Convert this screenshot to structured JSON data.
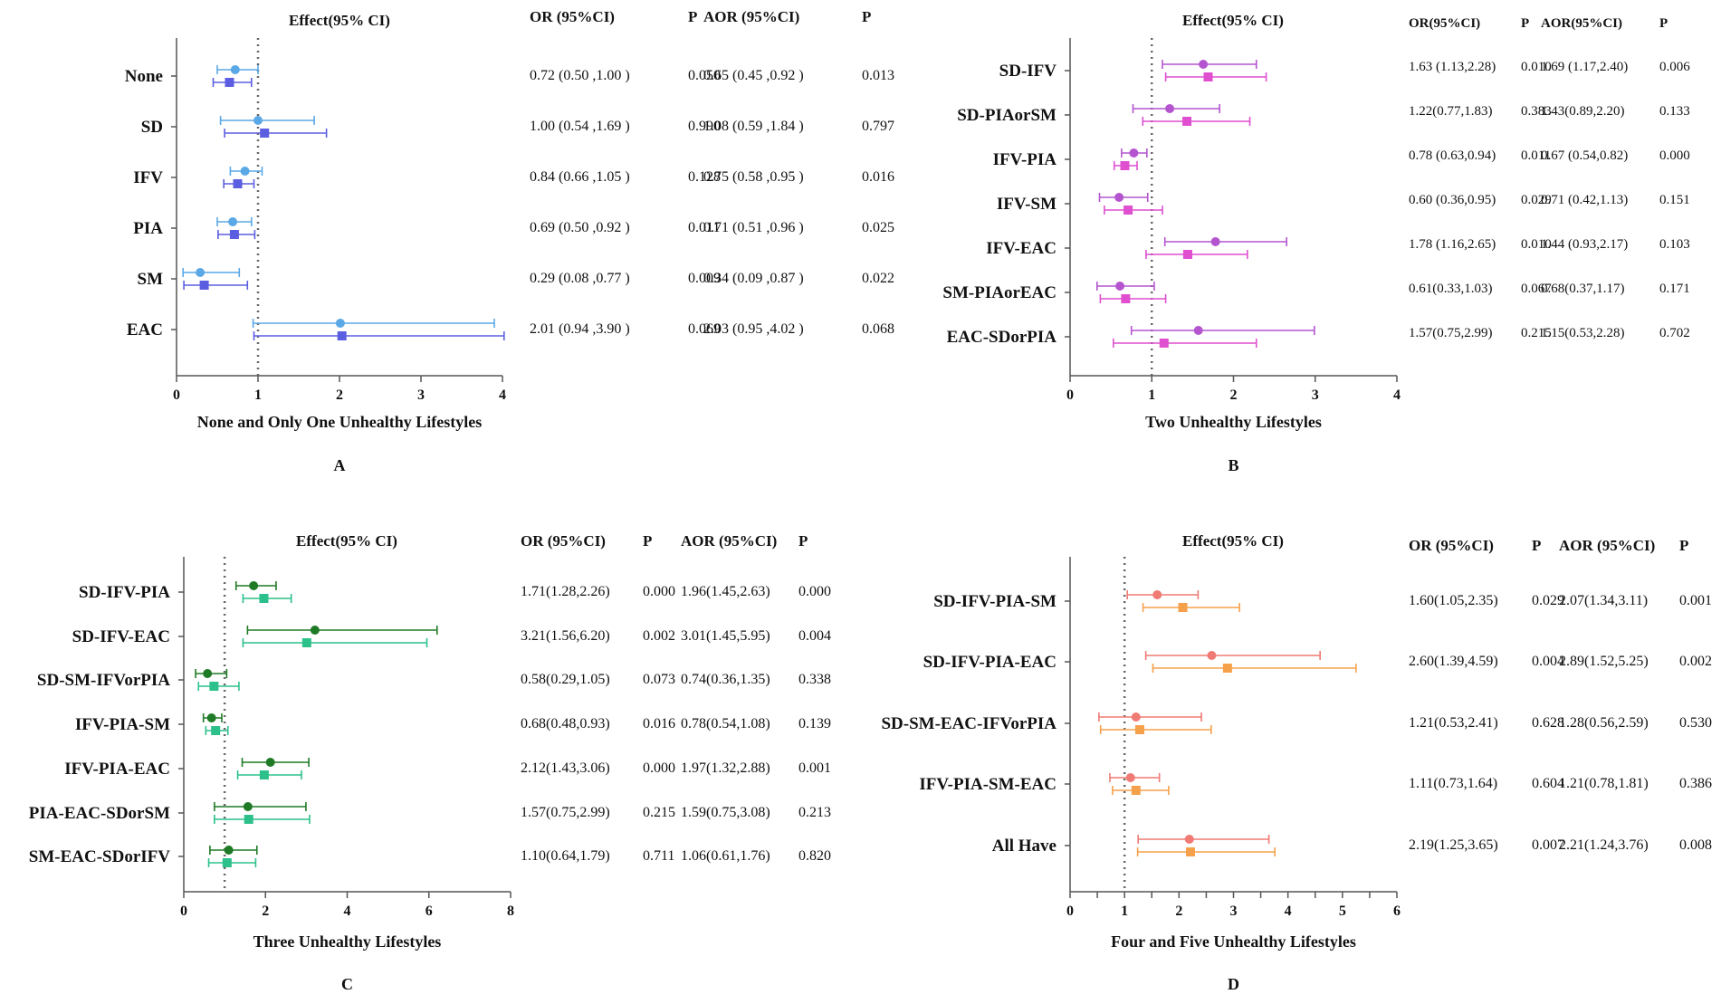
{
  "chart_data": [
    {
      "id": "A",
      "type": "forest",
      "panel_label": "A",
      "title": "Effect(95% CI)",
      "xlabel": "None and Only One Unhealthy Lifestyles",
      "xlim": [
        0,
        4
      ],
      "xticks": [
        0,
        1,
        2,
        3,
        4
      ],
      "reference_line": 1,
      "colors": {
        "or": "#5aa8e6",
        "aor": "#5b5ee0"
      },
      "headers": [
        "OR (95%CI)",
        "P",
        "AOR (95%CI)",
        "P"
      ],
      "rows": [
        {
          "label": "None",
          "or": 0.72,
          "or_lo": 0.5,
          "or_hi": 1.0,
          "aor": 0.65,
          "aor_lo": 0.45,
          "aor_hi": 0.92,
          "or_text": "0.72 (0.50 ,1.00 )",
          "p": "0.050",
          "aor_text": "0.65 (0.45 ,0.92 )",
          "ap": "0.013"
        },
        {
          "label": "SD",
          "or": 1.0,
          "or_lo": 0.54,
          "or_hi": 1.69,
          "aor": 1.08,
          "aor_lo": 0.59,
          "aor_hi": 1.84,
          "or_text": "1.00 (0.54 ,1.69 )",
          "p": "0.990",
          "aor_text": "1.08 (0.59 ,1.84 )",
          "ap": "0.797"
        },
        {
          "label": "IFV",
          "or": 0.84,
          "or_lo": 0.66,
          "or_hi": 1.05,
          "aor": 0.75,
          "aor_lo": 0.58,
          "aor_hi": 0.95,
          "or_text": "0.84 (0.66 ,1.05 )",
          "p": "0.128",
          "aor_text": "0.75 (0.58 ,0.95 )",
          "ap": "0.016"
        },
        {
          "label": "PIA",
          "or": 0.69,
          "or_lo": 0.5,
          "or_hi": 0.92,
          "aor": 0.71,
          "aor_lo": 0.51,
          "aor_hi": 0.96,
          "or_text": "0.69 (0.50 ,0.92 )",
          "p": "0.011",
          "aor_text": "0.71 (0.51 ,0.96 )",
          "ap": "0.025"
        },
        {
          "label": "SM",
          "or": 0.29,
          "or_lo": 0.08,
          "or_hi": 0.77,
          "aor": 0.34,
          "aor_lo": 0.09,
          "aor_hi": 0.87,
          "or_text": "0.29 (0.08 ,0.77 )",
          "p": "0.009",
          "aor_text": "0.34 (0.09 ,0.87 )",
          "ap": "0.022"
        },
        {
          "label": "EAC",
          "or": 2.01,
          "or_lo": 0.94,
          "or_hi": 3.9,
          "aor": 2.03,
          "aor_lo": 0.95,
          "aor_hi": 4.02,
          "or_text": "2.01 (0.94 ,3.90 )",
          "p": "0.069",
          "aor_text": "2.03 (0.95 ,4.02 )",
          "ap": "0.068"
        }
      ]
    },
    {
      "id": "B",
      "type": "forest",
      "panel_label": "B",
      "title": "Effect(95% CI)",
      "xlabel": "Two  Unhealthy Lifestyles",
      "xlim": [
        0,
        4
      ],
      "xticks": [
        0,
        1,
        2,
        3,
        4
      ],
      "reference_line": 1,
      "colors": {
        "or": "#b455cf",
        "aor": "#e04fd0"
      },
      "headers": [
        "OR(95%CI)",
        "P",
        "AOR(95%CI)",
        "P"
      ],
      "rows": [
        {
          "label": "SD-IFV",
          "or": 1.63,
          "or_lo": 1.13,
          "or_hi": 2.28,
          "aor": 1.69,
          "aor_lo": 1.17,
          "aor_hi": 2.4,
          "or_text": "1.63 (1.13,2.28)",
          "p": "0.010",
          "aor_text": "1.69 (1.17,2.40)",
          "ap": "0.006"
        },
        {
          "label": "SD-PIAorSM",
          "or": 1.22,
          "or_lo": 0.77,
          "or_hi": 1.83,
          "aor": 1.43,
          "aor_lo": 0.89,
          "aor_hi": 2.2,
          "or_text": "1.22(0.77,1.83)",
          "p": "0.383",
          "aor_text": "1.43(0.89,2.20)",
          "ap": "0.133"
        },
        {
          "label": "IFV-PIA",
          "or": 0.78,
          "or_lo": 0.63,
          "or_hi": 0.94,
          "aor": 0.67,
          "aor_lo": 0.54,
          "aor_hi": 0.82,
          "or_text": "0.78 (0.63,0.94)",
          "p": "0.011",
          "aor_text": "0.67 (0.54,0.82)",
          "ap": "0.000"
        },
        {
          "label": "IFV-SM",
          "or": 0.6,
          "or_lo": 0.36,
          "or_hi": 0.95,
          "aor": 0.71,
          "aor_lo": 0.42,
          "aor_hi": 1.13,
          "or_text": "0.60 (0.36,0.95)",
          "p": "0.029",
          "aor_text": "0.71 (0.42,1.13)",
          "ap": "0.151"
        },
        {
          "label": "IFV-EAC",
          "or": 1.78,
          "or_lo": 1.16,
          "or_hi": 2.65,
          "aor": 1.44,
          "aor_lo": 0.93,
          "aor_hi": 2.17,
          "or_text": "1.78 (1.16,2.65)",
          "p": "0.010",
          "aor_text": "1.44 (0.93,2.17)",
          "ap": "0.103"
        },
        {
          "label": "SM-PIAorEAC",
          "or": 0.61,
          "or_lo": 0.33,
          "or_hi": 1.03,
          "aor": 0.68,
          "aor_lo": 0.37,
          "aor_hi": 1.17,
          "or_text": "0.61(0.33,1.03)",
          "p": "0.067",
          "aor_text": "0.68(0.37,1.17)",
          "ap": "0.171"
        },
        {
          "label": "EAC-SDorPIA",
          "or": 1.57,
          "or_lo": 0.75,
          "or_hi": 2.99,
          "aor": 1.15,
          "aor_lo": 0.53,
          "aor_hi": 2.28,
          "or_text": "1.57(0.75,2.99)",
          "p": "0.215",
          "aor_text": "1.15(0.53,2.28)",
          "ap": "0.702"
        }
      ]
    },
    {
      "id": "C",
      "type": "forest",
      "panel_label": "C",
      "title": "Effect(95% CI)",
      "xlabel": "Three  Unhealthy Lifestyles",
      "xlim": [
        0,
        8
      ],
      "xticks": [
        0,
        2,
        4,
        6,
        8
      ],
      "reference_line": 1,
      "colors": {
        "or": "#1f7a25",
        "aor": "#2cc08a"
      },
      "headers": [
        "OR (95%CI)",
        "P",
        "AOR (95%CI)",
        "P"
      ],
      "rows": [
        {
          "label": "SD-IFV-PIA",
          "or": 1.71,
          "or_lo": 1.28,
          "or_hi": 2.26,
          "aor": 1.96,
          "aor_lo": 1.45,
          "aor_hi": 2.63,
          "or_text": "1.71(1.28,2.26)",
          "p": "0.000",
          "aor_text": "1.96(1.45,2.63)",
          "ap": "0.000"
        },
        {
          "label": "SD-IFV-EAC",
          "or": 3.21,
          "or_lo": 1.56,
          "or_hi": 6.2,
          "aor": 3.01,
          "aor_lo": 1.45,
          "aor_hi": 5.95,
          "or_text": "3.21(1.56,6.20)",
          "p": "0.002",
          "aor_text": "3.01(1.45,5.95)",
          "ap": "0.004"
        },
        {
          "label": "SD-SM-IFVorPIA",
          "or": 0.58,
          "or_lo": 0.29,
          "or_hi": 1.05,
          "aor": 0.74,
          "aor_lo": 0.36,
          "aor_hi": 1.35,
          "or_text": "0.58(0.29,1.05)",
          "p": "0.073",
          "aor_text": "0.74(0.36,1.35)",
          "ap": "0.338"
        },
        {
          "label": "IFV-PIA-SM",
          "or": 0.68,
          "or_lo": 0.48,
          "or_hi": 0.93,
          "aor": 0.78,
          "aor_lo": 0.54,
          "aor_hi": 1.08,
          "or_text": "0.68(0.48,0.93)",
          "p": "0.016",
          "aor_text": "0.78(0.54,1.08)",
          "ap": "0.139"
        },
        {
          "label": "IFV-PIA-EAC",
          "or": 2.12,
          "or_lo": 1.43,
          "or_hi": 3.06,
          "aor": 1.97,
          "aor_lo": 1.32,
          "aor_hi": 2.88,
          "or_text": "2.12(1.43,3.06)",
          "p": "0.000",
          "aor_text": "1.97(1.32,2.88)",
          "ap": "0.001"
        },
        {
          "label": "PIA-EAC-SDorSM",
          "or": 1.57,
          "or_lo": 0.75,
          "or_hi": 2.99,
          "aor": 1.59,
          "aor_lo": 0.75,
          "aor_hi": 3.08,
          "or_text": "1.57(0.75,2.99)",
          "p": "0.215",
          "aor_text": "1.59(0.75,3.08)",
          "ap": "0.213"
        },
        {
          "label": "SM-EAC-SDorIFV",
          "or": 1.1,
          "or_lo": 0.64,
          "or_hi": 1.79,
          "aor": 1.06,
          "aor_lo": 0.61,
          "aor_hi": 1.76,
          "or_text": "1.10(0.64,1.79)",
          "p": "0.711",
          "aor_text": "1.06(0.61,1.76)",
          "ap": "0.820"
        }
      ]
    },
    {
      "id": "D",
      "type": "forest",
      "panel_label": "D",
      "title": "Effect(95% CI)",
      "xlabel": "Four and Five Unhealthy Lifestyles",
      "xlim": [
        0,
        6
      ],
      "xticks": [
        0,
        0.5,
        1,
        1.5,
        2,
        2.5,
        3,
        3.5,
        4,
        4.5,
        5,
        5.5,
        6
      ],
      "xtick_labels": [
        "0",
        "",
        "1",
        "",
        "2",
        "",
        "3",
        "",
        "4",
        "",
        "5",
        "",
        "6"
      ],
      "reference_line": 1,
      "colors": {
        "or": "#f07a74",
        "aor": "#f5a04a"
      },
      "headers": [
        "OR (95%CI)",
        "P",
        "AOR (95%CI)",
        "P"
      ],
      "rows": [
        {
          "label": "SD-IFV-PIA-SM",
          "or": 1.6,
          "or_lo": 1.05,
          "or_hi": 2.35,
          "aor": 2.07,
          "aor_lo": 1.34,
          "aor_hi": 3.11,
          "or_text": "1.60(1.05,2.35)",
          "p": "0.029",
          "aor_text": "2.07(1.34,3.11)",
          "ap": "0.001"
        },
        {
          "label": "SD-IFV-PIA-EAC",
          "or": 2.6,
          "or_lo": 1.39,
          "or_hi": 4.59,
          "aor": 2.89,
          "aor_lo": 1.52,
          "aor_hi": 5.25,
          "or_text": "2.60(1.39,4.59)",
          "p": "0.004",
          "aor_text": "2.89(1.52,5.25)",
          "ap": "0.002"
        },
        {
          "label": "SD-SM-EAC-IFVorPIA",
          "or": 1.21,
          "or_lo": 0.53,
          "or_hi": 2.41,
          "aor": 1.28,
          "aor_lo": 0.56,
          "aor_hi": 2.59,
          "or_text": "1.21(0.53,2.41)",
          "p": "0.628",
          "aor_text": "1.28(0.56,2.59)",
          "ap": "0.530"
        },
        {
          "label": "IFV-PIA-SM-EAC",
          "or": 1.11,
          "or_lo": 0.73,
          "or_hi": 1.64,
          "aor": 1.21,
          "aor_lo": 0.78,
          "aor_hi": 1.81,
          "or_text": "1.11(0.73,1.64)",
          "p": "0.604",
          "aor_text": "1.21(0.78,1.81)",
          "ap": "0.386"
        },
        {
          "label": "All Have",
          "or": 2.19,
          "or_lo": 1.25,
          "or_hi": 3.65,
          "aor": 2.21,
          "aor_lo": 1.24,
          "aor_hi": 3.76,
          "or_text": "2.19(1.25,3.65)",
          "p": "0.007",
          "aor_text": "2.21(1.24,3.76)",
          "ap": "0.008"
        }
      ]
    }
  ]
}
